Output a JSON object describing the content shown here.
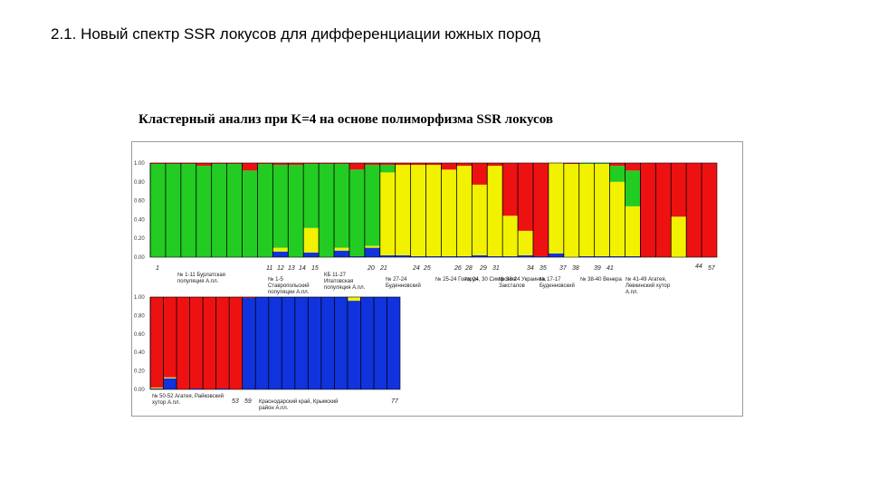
{
  "slide": {
    "title": "2.1. Новый спектр SSR локусов для дифференциации южных пород",
    "caption": "Кластерный анализ при K=4 на основе полиморфизма SSR локусов"
  },
  "colors": {
    "cluster_green": "#22cc22",
    "cluster_yellow": "#f2f200",
    "cluster_red": "#ee1111",
    "cluster_blue": "#1133dd",
    "bar_separator": "#000000"
  },
  "chart_data": [
    {
      "type": "bar",
      "stacked": true,
      "panel": "top",
      "ylim": [
        0,
        1
      ],
      "y_ticks": [
        "1.00",
        "0.80",
        "0.60",
        "0.40",
        "0.20",
        "0.00"
      ],
      "series_order": [
        "cluster_blue",
        "cluster_yellow",
        "cluster_green",
        "cluster_red"
      ],
      "individuals": [
        {
          "blue": 0.0,
          "yellow": 0.0,
          "green": 0.99,
          "red": 0.01
        },
        {
          "blue": 0.0,
          "yellow": 0.0,
          "green": 0.99,
          "red": 0.01
        },
        {
          "blue": 0.0,
          "yellow": 0.0,
          "green": 0.99,
          "red": 0.01
        },
        {
          "blue": 0.0,
          "yellow": 0.0,
          "green": 0.97,
          "red": 0.03
        },
        {
          "blue": 0.0,
          "yellow": 0.0,
          "green": 0.99,
          "red": 0.01
        },
        {
          "blue": 0.0,
          "yellow": 0.0,
          "green": 0.99,
          "red": 0.01
        },
        {
          "blue": 0.0,
          "yellow": 0.0,
          "green": 0.92,
          "red": 0.08
        },
        {
          "blue": 0.0,
          "yellow": 0.0,
          "green": 0.99,
          "red": 0.01
        },
        {
          "blue": 0.06,
          "yellow": 0.04,
          "green": 0.88,
          "red": 0.02
        },
        {
          "blue": 0.0,
          "yellow": 0.0,
          "green": 0.98,
          "red": 0.02
        },
        {
          "blue": 0.05,
          "yellow": 0.26,
          "green": 0.68,
          "red": 0.01
        },
        {
          "blue": 0.0,
          "yellow": 0.0,
          "green": 0.99,
          "red": 0.01
        },
        {
          "blue": 0.07,
          "yellow": 0.03,
          "green": 0.89,
          "red": 0.01
        },
        {
          "blue": 0.01,
          "yellow": 0.0,
          "green": 0.92,
          "red": 0.07
        },
        {
          "blue": 0.1,
          "yellow": 0.02,
          "green": 0.86,
          "red": 0.02
        },
        {
          "blue": 0.02,
          "yellow": 0.88,
          "green": 0.08,
          "red": 0.02
        },
        {
          "blue": 0.02,
          "yellow": 0.96,
          "green": 0.0,
          "red": 0.02
        },
        {
          "blue": 0.01,
          "yellow": 0.97,
          "green": 0.0,
          "red": 0.02
        },
        {
          "blue": 0.01,
          "yellow": 0.97,
          "green": 0.0,
          "red": 0.02
        },
        {
          "blue": 0.01,
          "yellow": 0.92,
          "green": 0.0,
          "red": 0.07
        },
        {
          "blue": 0.01,
          "yellow": 0.96,
          "green": 0.0,
          "red": 0.03
        },
        {
          "blue": 0.02,
          "yellow": 0.75,
          "green": 0.0,
          "red": 0.23
        },
        {
          "blue": 0.01,
          "yellow": 0.96,
          "green": 0.0,
          "red": 0.03
        },
        {
          "blue": 0.01,
          "yellow": 0.43,
          "green": 0.0,
          "red": 0.56
        },
        {
          "blue": 0.02,
          "yellow": 0.26,
          "green": 0.0,
          "red": 0.72
        },
        {
          "blue": 0.01,
          "yellow": 0.0,
          "green": 0.0,
          "red": 0.99
        },
        {
          "blue": 0.04,
          "yellow": 0.96,
          "green": 0.0,
          "red": 0.0
        },
        {
          "blue": 0.0,
          "yellow": 0.99,
          "green": 0.0,
          "red": 0.01
        },
        {
          "blue": 0.01,
          "yellow": 0.98,
          "green": 0.01,
          "red": 0.0
        },
        {
          "blue": 0.01,
          "yellow": 0.98,
          "green": 0.01,
          "red": 0.0
        },
        {
          "blue": 0.01,
          "yellow": 0.79,
          "green": 0.17,
          "red": 0.03
        },
        {
          "blue": 0.01,
          "yellow": 0.53,
          "green": 0.38,
          "red": 0.08
        },
        {
          "blue": 0.0,
          "yellow": 0.0,
          "green": 0.0,
          "red": 1.0
        },
        {
          "blue": 0.0,
          "yellow": 0.0,
          "green": 0.0,
          "red": 1.0
        },
        {
          "blue": 0.0,
          "yellow": 0.43,
          "green": 0.0,
          "red": 0.57
        },
        {
          "blue": 0.0,
          "yellow": 0.0,
          "green": 0.0,
          "red": 1.0
        },
        {
          "blue": 0.0,
          "yellow": 0.0,
          "green": 0.0,
          "red": 1.0
        }
      ],
      "x_labels": [
        "1",
        "№ 1-11 Бурлатская популяция А.пл.",
        "11",
        "12",
        "13",
        "14",
        "15",
        "КБ 11-27 Ипатовская популяция А.пл.",
        "20",
        "21",
        "24",
        "25",
        "26",
        "28",
        "29",
        "31",
        "34",
        "35",
        "37",
        "38",
        "39",
        "41",
        "44",
        "57",
        "№ 27-24 Буденновский",
        "№ 25-24 Говорун",
        "№ 24, 30 Симфония",
        "№ 1-5 Ставропольский популяции А.пл.",
        "№ 38-24 Украинка, Заксталов",
        "№ 17-17 Буденновский",
        "№ 38-40 Венера",
        "№ 41-49 Агатея, Левкинский хутор А.пл."
      ]
    },
    {
      "type": "bar",
      "stacked": true,
      "panel": "bottom",
      "ylim": [
        0,
        1
      ],
      "y_ticks": [
        "1.00",
        "0.80",
        "0.60",
        "0.40",
        "0.20",
        "0.00"
      ],
      "series_order": [
        "cluster_blue",
        "cluster_yellow",
        "cluster_green",
        "cluster_red"
      ],
      "individuals": [
        {
          "blue": 0.01,
          "yellow": 0.01,
          "green": 0.0,
          "red": 0.98
        },
        {
          "blue": 0.12,
          "yellow": 0.01,
          "green": 0.0,
          "red": 0.87
        },
        {
          "blue": 0.0,
          "yellow": 0.0,
          "green": 0.0,
          "red": 1.0
        },
        {
          "blue": 0.01,
          "yellow": 0.0,
          "green": 0.0,
          "red": 0.99
        },
        {
          "blue": 0.0,
          "yellow": 0.0,
          "green": 0.0,
          "red": 1.0
        },
        {
          "blue": 0.01,
          "yellow": 0.0,
          "green": 0.0,
          "red": 0.99
        },
        {
          "blue": 0.0,
          "yellow": 0.0,
          "green": 0.0,
          "red": 1.0
        },
        {
          "blue": 0.99,
          "yellow": 0.0,
          "green": 0.0,
          "red": 0.01
        },
        {
          "blue": 1.0,
          "yellow": 0.0,
          "green": 0.0,
          "red": 0.0
        },
        {
          "blue": 1.0,
          "yellow": 0.0,
          "green": 0.0,
          "red": 0.0
        },
        {
          "blue": 1.0,
          "yellow": 0.0,
          "green": 0.0,
          "red": 0.0
        },
        {
          "blue": 1.0,
          "yellow": 0.0,
          "green": 0.0,
          "red": 0.0
        },
        {
          "blue": 1.0,
          "yellow": 0.0,
          "green": 0.0,
          "red": 0.0
        },
        {
          "blue": 1.0,
          "yellow": 0.0,
          "green": 0.0,
          "red": 0.0
        },
        {
          "blue": 1.0,
          "yellow": 0.0,
          "green": 0.0,
          "red": 0.0
        },
        {
          "blue": 0.96,
          "yellow": 0.04,
          "green": 0.0,
          "red": 0.0
        },
        {
          "blue": 1.0,
          "yellow": 0.0,
          "green": 0.0,
          "red": 0.0
        },
        {
          "blue": 1.0,
          "yellow": 0.0,
          "green": 0.0,
          "red": 0.0
        },
        {
          "blue": 1.0,
          "yellow": 0.0,
          "green": 0.0,
          "red": 0.0
        }
      ],
      "x_labels": [
        "№ 50-52 Агатея, Райковский хутор А.пл.",
        "53",
        "59",
        "Краснодарский край, Крымский район А.пл.",
        "77"
      ]
    }
  ]
}
